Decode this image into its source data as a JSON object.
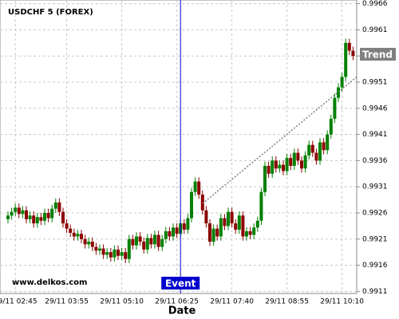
{
  "chart_data": {
    "type": "candlestick",
    "title": "USDCHF 5 (FOREX)",
    "x_label": "Date",
    "watermark": "www.delkos.com",
    "categories": [
      null,
      null,
      "29/11 02:45",
      null,
      null,
      null,
      null,
      null,
      null,
      null,
      null,
      null,
      null,
      null,
      null,
      null,
      "29/11 03:55",
      null,
      null,
      null,
      null,
      null,
      null,
      null,
      null,
      null,
      null,
      null,
      null,
      null,
      null,
      "29/11 05:10",
      null,
      null,
      null,
      null,
      null,
      null,
      null,
      null,
      null,
      null,
      null,
      null,
      null,
      null,
      "29/11 06:25",
      null,
      null,
      null,
      null,
      null,
      null,
      null,
      null,
      null,
      null,
      null,
      null,
      null,
      null,
      "29/11 07:40",
      null,
      null,
      null,
      null,
      null,
      null,
      null,
      null,
      null,
      null,
      null,
      null,
      null,
      null,
      "29/11 08:55",
      null,
      null,
      null,
      null,
      null,
      null,
      null,
      null,
      null,
      null,
      null,
      null,
      null,
      null,
      "29/11 10:10",
      null,
      null,
      null
    ],
    "open": [
      0.99248,
      0.99255,
      0.99262,
      0.9927,
      0.99258,
      0.99265,
      0.99248,
      0.99255,
      0.9924,
      0.99252,
      0.99245,
      0.9926,
      0.9925,
      0.99268,
      0.9928,
      0.99262,
      0.9924,
      0.9923,
      0.99222,
      0.99215,
      0.9922,
      0.9921,
      0.992,
      0.99205,
      0.99195,
      0.99188,
      0.99192,
      0.9918,
      0.99185,
      0.99175,
      0.9919,
      0.99178,
      0.99185,
      0.99172,
      0.9921,
      0.99198,
      0.99215,
      0.99205,
      0.9919,
      0.99212,
      0.992,
      0.99218,
      0.99195,
      0.9921,
      0.99225,
      0.99215,
      0.99232,
      0.9922,
      0.9924,
      0.99228,
      0.9925,
      0.993,
      0.9932,
      0.99295,
      0.99265,
      0.9924,
      0.99205,
      0.9923,
      0.99215,
      0.9925,
      0.99235,
      0.99262,
      0.9924,
      0.99228,
      0.99255,
      0.99215,
      0.99225,
      0.99218,
      0.99232,
      0.99245,
      0.993,
      0.9935,
      0.99335,
      0.9936,
      0.99345,
      0.99352,
      0.9934,
      0.99365,
      0.9935,
      0.99375,
      0.9936,
      0.99345,
      0.9937,
      0.9939,
      0.99375,
      0.9936,
      0.99395,
      0.9938,
      0.9941,
      0.9944,
      0.9948,
      0.995,
      0.9952,
      0.99585,
      0.9957
    ],
    "high": [
      0.99263,
      0.9927,
      0.99278,
      0.99278,
      0.99273,
      0.99273,
      0.99263,
      0.99263,
      0.9926,
      0.9926,
      0.99268,
      0.99268,
      0.99276,
      0.99288,
      0.99288,
      0.9927,
      0.99248,
      0.99238,
      0.9923,
      0.99228,
      0.99228,
      0.99218,
      0.99213,
      0.99213,
      0.99203,
      0.992,
      0.992,
      0.99193,
      0.99193,
      0.99198,
      0.99198,
      0.99193,
      0.99193,
      0.99218,
      0.99218,
      0.99223,
      0.99223,
      0.99213,
      0.9922,
      0.9922,
      0.99226,
      0.99226,
      0.99218,
      0.99233,
      0.99233,
      0.9924,
      0.9924,
      0.99248,
      0.99248,
      0.99258,
      0.99308,
      0.99328,
      0.99328,
      0.99303,
      0.99273,
      0.99248,
      0.99238,
      0.99238,
      0.99258,
      0.99258,
      0.9927,
      0.9927,
      0.99248,
      0.99263,
      0.99263,
      0.99233,
      0.99233,
      0.9924,
      0.99253,
      0.99308,
      0.99358,
      0.99358,
      0.99368,
      0.99368,
      0.9936,
      0.9936,
      0.99373,
      0.99373,
      0.99383,
      0.99383,
      0.99368,
      0.99378,
      0.99398,
      0.99398,
      0.99383,
      0.99403,
      0.99403,
      0.99418,
      0.99448,
      0.99488,
      0.99508,
      0.99528,
      0.99593,
      0.99593,
      0.99578
    ],
    "low": [
      0.9924,
      0.99247,
      0.99254,
      0.9925,
      0.9925,
      0.9924,
      0.9924,
      0.99232,
      0.99232,
      0.99237,
      0.99237,
      0.99242,
      0.99242,
      0.9926,
      0.99254,
      0.99232,
      0.99222,
      0.99214,
      0.99207,
      0.99207,
      0.99202,
      0.99192,
      0.99192,
      0.99187,
      0.9918,
      0.9918,
      0.99172,
      0.99172,
      0.99167,
      0.99167,
      0.9917,
      0.9917,
      0.99164,
      0.99164,
      0.9919,
      0.9919,
      0.99197,
      0.99182,
      0.99182,
      0.99192,
      0.99192,
      0.99187,
      0.99187,
      0.99202,
      0.99207,
      0.99207,
      0.99212,
      0.99212,
      0.9922,
      0.9922,
      0.99242,
      0.99292,
      0.99287,
      0.99257,
      0.99232,
      0.99197,
      0.99197,
      0.99207,
      0.99207,
      0.99227,
      0.99227,
      0.99232,
      0.9922,
      0.9922,
      0.99207,
      0.99207,
      0.9921,
      0.9921,
      0.99224,
      0.99237,
      0.99292,
      0.99327,
      0.99327,
      0.99337,
      0.99337,
      0.99332,
      0.99332,
      0.99342,
      0.99342,
      0.99352,
      0.99337,
      0.99337,
      0.99362,
      0.99367,
      0.99352,
      0.99352,
      0.99372,
      0.99372,
      0.99402,
      0.99432,
      0.99472,
      0.99492,
      0.99512,
      0.99562,
      0.99552
    ],
    "close": [
      0.99255,
      0.99262,
      0.9927,
      0.99258,
      0.99265,
      0.99248,
      0.99255,
      0.9924,
      0.99252,
      0.99245,
      0.9926,
      0.9925,
      0.99268,
      0.9928,
      0.99262,
      0.9924,
      0.9923,
      0.99222,
      0.99215,
      0.9922,
      0.9921,
      0.992,
      0.99205,
      0.99195,
      0.99188,
      0.99192,
      0.9918,
      0.99185,
      0.99175,
      0.9919,
      0.99178,
      0.99185,
      0.99172,
      0.9921,
      0.99198,
      0.99215,
      0.99205,
      0.9919,
      0.99212,
      0.992,
      0.99218,
      0.99195,
      0.9921,
      0.99225,
      0.99215,
      0.99232,
      0.9922,
      0.9924,
      0.99228,
      0.9925,
      0.993,
      0.9932,
      0.99295,
      0.99265,
      0.9924,
      0.99205,
      0.9923,
      0.99215,
      0.9925,
      0.99235,
      0.99262,
      0.9924,
      0.99228,
      0.99255,
      0.99215,
      0.99225,
      0.99218,
      0.99232,
      0.99245,
      0.993,
      0.9935,
      0.99335,
      0.9936,
      0.99345,
      0.99352,
      0.9934,
      0.99365,
      0.9935,
      0.99375,
      0.9936,
      0.99345,
      0.9937,
      0.9939,
      0.99375,
      0.9936,
      0.99395,
      0.9938,
      0.9941,
      0.9944,
      0.9948,
      0.995,
      0.9952,
      0.99585,
      0.9957,
      0.9956
    ],
    "up_color": "#008000",
    "down_color": "#8b0000",
    "ylim": [
      0.99106,
      0.99667
    ],
    "yticks": [
      0.9911,
      0.9916,
      0.9921,
      0.9926,
      0.9931,
      0.9936,
      0.9941,
      0.9946,
      0.9951,
      0.9956,
      0.9961,
      0.9966
    ],
    "grid": true,
    "event": {
      "label": "Event",
      "color": "#0000cd"
    },
    "trend": {
      "label": "Trend",
      "start": 0.99278,
      "end": 0.9952,
      "color": "#808080"
    }
  }
}
